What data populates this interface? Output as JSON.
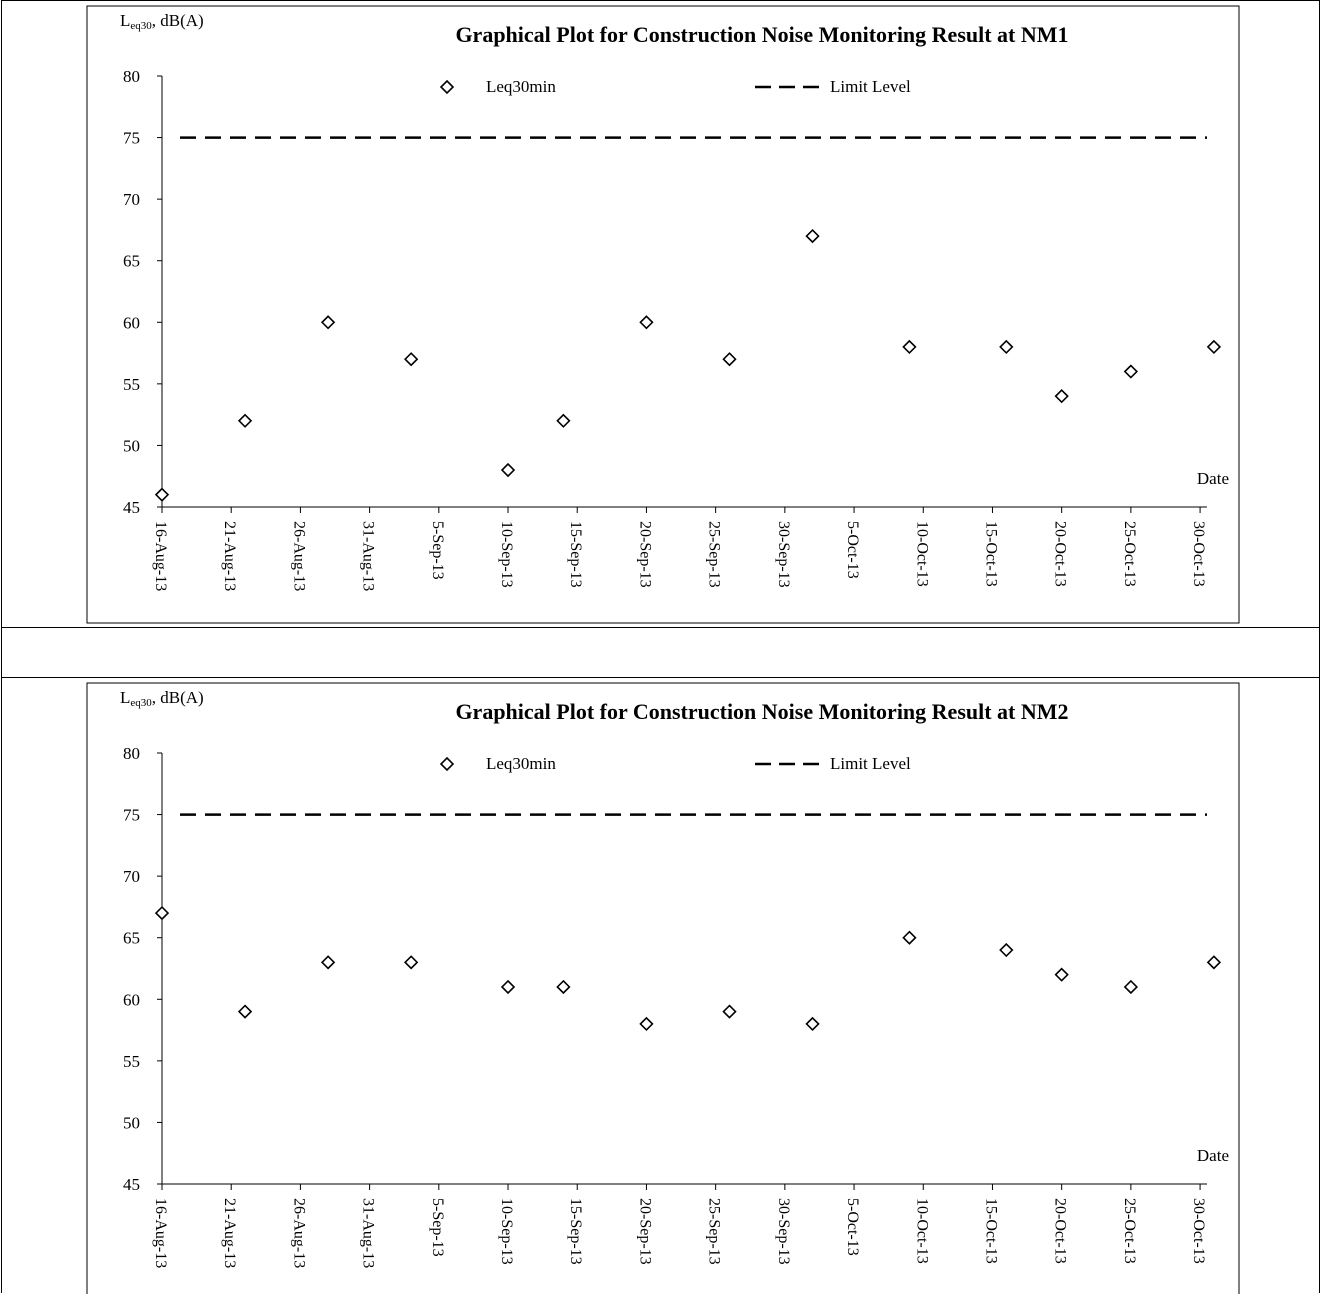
{
  "chart_data": [
    {
      "type": "scatter",
      "title": "Graphical Plot for Construction Noise Monitoring Result at NM1",
      "ylabel_main": "L",
      "ylabel_sub": "eq30",
      "ylabel_rest": ", dB(A)",
      "xlabel": "Date",
      "ylim": [
        45,
        80
      ],
      "y_ticks": [
        45,
        50,
        55,
        60,
        65,
        70,
        75,
        80
      ],
      "x_tick_labels": [
        "16-Aug-13",
        "21-Aug-13",
        "26-Aug-13",
        "31-Aug-13",
        "5-Sep-13",
        "10-Sep-13",
        "15-Sep-13",
        "20-Sep-13",
        "25-Sep-13",
        "30-Sep-13",
        "5-Oct-13",
        "10-Oct-13",
        "15-Oct-13",
        "20-Oct-13",
        "25-Oct-13",
        "30-Oct-13"
      ],
      "legend": {
        "marker_label": "Leq30min",
        "line_label": "Limit Level"
      },
      "limit_level": 75,
      "series": [
        {
          "name": "Leq30min",
          "x": [
            "16-Aug-13",
            "22-Aug-13",
            "28-Aug-13",
            "3-Sep-13",
            "10-Sep-13",
            "14-Sep-13",
            "20-Sep-13",
            "26-Sep-13",
            "2-Oct-13",
            "9-Oct-13",
            "16-Oct-13",
            "20-Oct-13",
            "25-Oct-13",
            "31-Oct-13"
          ],
          "values": [
            46,
            52,
            60,
            57,
            48,
            52,
            60,
            57,
            67,
            58,
            58,
            54,
            56,
            58
          ]
        }
      ]
    },
    {
      "type": "scatter",
      "title": "Graphical Plot for Construction Noise Monitoring Result at NM2",
      "ylabel_main": "L",
      "ylabel_sub": "eq30",
      "ylabel_rest": ", dB(A)",
      "xlabel": "Date",
      "ylim": [
        45,
        80
      ],
      "y_ticks": [
        45,
        50,
        55,
        60,
        65,
        70,
        75,
        80
      ],
      "x_tick_labels": [
        "16-Aug-13",
        "21-Aug-13",
        "26-Aug-13",
        "31-Aug-13",
        "5-Sep-13",
        "10-Sep-13",
        "15-Sep-13",
        "20-Sep-13",
        "25-Sep-13",
        "30-Sep-13",
        "5-Oct-13",
        "10-Oct-13",
        "15-Oct-13",
        "20-Oct-13",
        "25-Oct-13",
        "30-Oct-13"
      ],
      "legend": {
        "marker_label": "Leq30min",
        "line_label": "Limit Level"
      },
      "limit_level": 75,
      "series": [
        {
          "name": "Leq30min",
          "x": [
            "16-Aug-13",
            "22-Aug-13",
            "28-Aug-13",
            "3-Sep-13",
            "10-Sep-13",
            "14-Sep-13",
            "20-Sep-13",
            "26-Sep-13",
            "2-Oct-13",
            "9-Oct-13",
            "16-Oct-13",
            "20-Oct-13",
            "25-Oct-13",
            "31-Oct-13"
          ],
          "values": [
            67,
            59,
            63,
            63,
            61,
            61,
            58,
            59,
            58,
            65,
            64,
            62,
            61,
            63
          ]
        }
      ]
    }
  ]
}
